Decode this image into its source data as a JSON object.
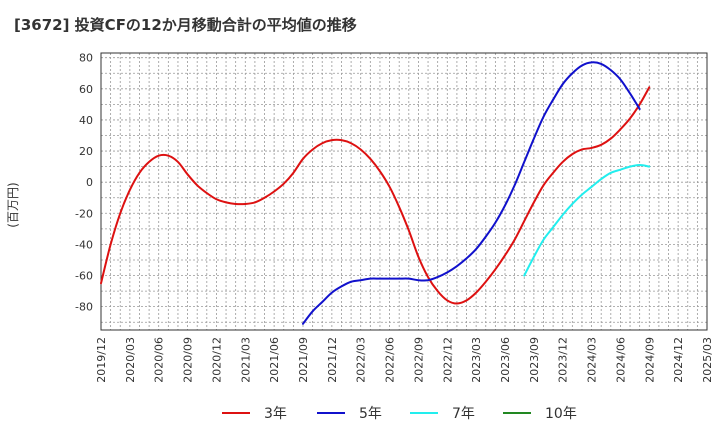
{
  "title": "[3672]  投資CFの12か月移動合計の平均値の推移",
  "chart_data": {
    "type": "line",
    "title": "[3672]  投資CFの12か月移動合計の平均値の推移",
    "ylabel": "(百万円)",
    "xlabel": "",
    "ylim": [
      -95,
      83
    ],
    "yticks": [
      80,
      60,
      40,
      20,
      0,
      -20,
      -40,
      -60,
      -80
    ],
    "xlim": [
      "2019-12",
      "2025-03"
    ],
    "xticks": [
      "2019/12",
      "2020/03",
      "2020/06",
      "2020/09",
      "2020/12",
      "2021/03",
      "2021/06",
      "2021/09",
      "2021/12",
      "2022/03",
      "2022/06",
      "2022/09",
      "2022/12",
      "2023/03",
      "2023/06",
      "2023/09",
      "2023/12",
      "2024/03",
      "2024/06",
      "2024/09",
      "2024/12",
      "2025/03"
    ],
    "grid": true,
    "legend_position": "bottom",
    "series": [
      {
        "name": "3年",
        "color": "#dd1111",
        "points": [
          [
            "2019-12",
            -65
          ],
          [
            "2020-01",
            -40
          ],
          [
            "2020-02",
            -20
          ],
          [
            "2020-03",
            -5
          ],
          [
            "2020-04",
            6
          ],
          [
            "2020-05",
            13
          ],
          [
            "2020-06",
            17
          ],
          [
            "2020-07",
            17
          ],
          [
            "2020-08",
            13
          ],
          [
            "2020-09",
            5
          ],
          [
            "2020-10",
            -2
          ],
          [
            "2020-11",
            -7
          ],
          [
            "2020-12",
            -11
          ],
          [
            "2021-01",
            -13
          ],
          [
            "2021-02",
            -14
          ],
          [
            "2021-03",
            -14
          ],
          [
            "2021-04",
            -13
          ],
          [
            "2021-05",
            -10
          ],
          [
            "2021-06",
            -6
          ],
          [
            "2021-07",
            -1
          ],
          [
            "2021-08",
            6
          ],
          [
            "2021-09",
            15
          ],
          [
            "2021-10",
            21
          ],
          [
            "2021-11",
            25
          ],
          [
            "2021-12",
            27
          ],
          [
            "2022-01",
            27
          ],
          [
            "2022-02",
            25
          ],
          [
            "2022-03",
            21
          ],
          [
            "2022-04",
            15
          ],
          [
            "2022-05",
            7
          ],
          [
            "2022-06",
            -3
          ],
          [
            "2022-07",
            -16
          ],
          [
            "2022-08",
            -31
          ],
          [
            "2022-09",
            -48
          ],
          [
            "2022-10",
            -61
          ],
          [
            "2022-11",
            -70
          ],
          [
            "2022-12",
            -76
          ],
          [
            "2023-01",
            -78
          ],
          [
            "2023-02",
            -76
          ],
          [
            "2023-03",
            -71
          ],
          [
            "2023-04",
            -64
          ],
          [
            "2023-05",
            -56
          ],
          [
            "2023-06",
            -47
          ],
          [
            "2023-07",
            -37
          ],
          [
            "2023-08",
            -25
          ],
          [
            "2023-09",
            -13
          ],
          [
            "2023-10",
            -2
          ],
          [
            "2023-11",
            6
          ],
          [
            "2023-12",
            13
          ],
          [
            "2024-01",
            18
          ],
          [
            "2024-02",
            21
          ],
          [
            "2024-03",
            22
          ],
          [
            "2024-04",
            24
          ],
          [
            "2024-05",
            28
          ],
          [
            "2024-06",
            34
          ],
          [
            "2024-07",
            41
          ],
          [
            "2024-08",
            50
          ],
          [
            "2024-09",
            61
          ]
        ]
      },
      {
        "name": "5年",
        "color": "#1111cc",
        "points": [
          [
            "2021-09",
            -91
          ],
          [
            "2021-10",
            -83
          ],
          [
            "2021-11",
            -77
          ],
          [
            "2021-12",
            -71
          ],
          [
            "2022-01",
            -67
          ],
          [
            "2022-02",
            -64
          ],
          [
            "2022-03",
            -63
          ],
          [
            "2022-04",
            -62
          ],
          [
            "2022-05",
            -62
          ],
          [
            "2022-06",
            -62
          ],
          [
            "2022-07",
            -62
          ],
          [
            "2022-08",
            -62
          ],
          [
            "2022-09",
            -63
          ],
          [
            "2022-10",
            -63
          ],
          [
            "2022-11",
            -61
          ],
          [
            "2022-12",
            -58
          ],
          [
            "2023-01",
            -54
          ],
          [
            "2023-02",
            -49
          ],
          [
            "2023-03",
            -43
          ],
          [
            "2023-04",
            -35
          ],
          [
            "2023-05",
            -26
          ],
          [
            "2023-06",
            -15
          ],
          [
            "2023-07",
            -2
          ],
          [
            "2023-08",
            13
          ],
          [
            "2023-09",
            28
          ],
          [
            "2023-10",
            42
          ],
          [
            "2023-11",
            53
          ],
          [
            "2023-12",
            63
          ],
          [
            "2024-01",
            70
          ],
          [
            "2024-02",
            75
          ],
          [
            "2024-03",
            77
          ],
          [
            "2024-04",
            76
          ],
          [
            "2024-05",
            72
          ],
          [
            "2024-06",
            66
          ],
          [
            "2024-07",
            57
          ],
          [
            "2024-08",
            47
          ]
        ]
      },
      {
        "name": "7年",
        "color": "#22eeee",
        "points": [
          [
            "2023-08",
            -60
          ],
          [
            "2023-09",
            -48
          ],
          [
            "2023-10",
            -37
          ],
          [
            "2023-11",
            -29
          ],
          [
            "2023-12",
            -21
          ],
          [
            "2024-01",
            -14
          ],
          [
            "2024-02",
            -8
          ],
          [
            "2024-03",
            -3
          ],
          [
            "2024-04",
            2
          ],
          [
            "2024-05",
            6
          ],
          [
            "2024-06",
            8
          ],
          [
            "2024-07",
            10
          ],
          [
            "2024-08",
            11
          ],
          [
            "2024-09",
            10
          ]
        ]
      },
      {
        "name": "10年",
        "color": "#228822",
        "points": []
      }
    ]
  }
}
